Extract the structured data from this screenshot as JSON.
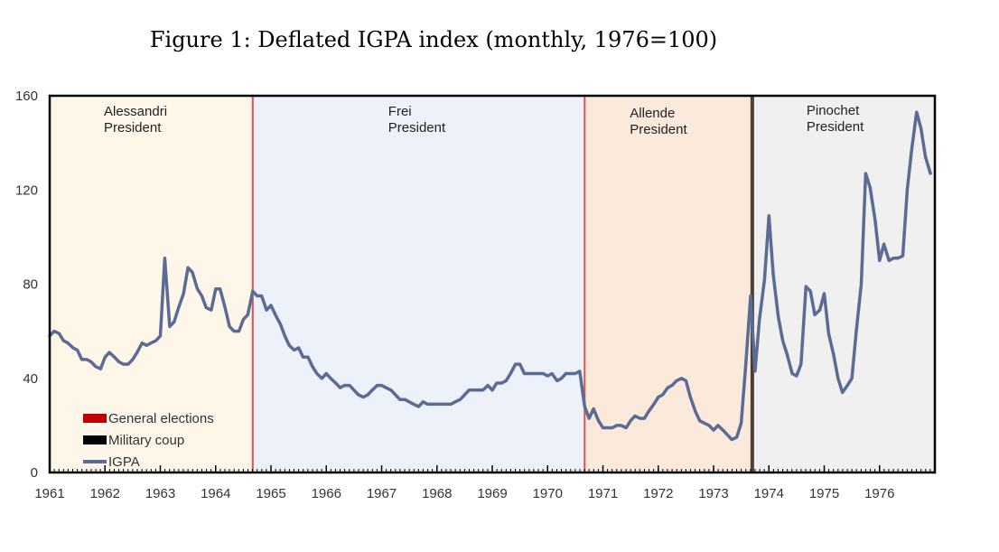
{
  "figure_title": "Figure 1: Deflated IGPA index (monthly, 1976=100)",
  "colors": {
    "igpa_line": "#5b6b94",
    "election_marker": "#c00000",
    "coup_marker": "#000000",
    "alessandri_bg": "#fef7e9",
    "frei_bg": "#edf1fa",
    "allende_bg": "#fbe9dc",
    "pinochet_bg": "#f0f0f0"
  },
  "chart_data": {
    "type": "line",
    "title": "Figure 1: Deflated IGPA index (monthly, 1976=100)",
    "xlabel": "",
    "ylabel": "",
    "xlim": [
      1961.0,
      1977.0
    ],
    "ylim": [
      0,
      160
    ],
    "yticks": [
      0,
      40,
      80,
      120,
      160
    ],
    "xticks": [
      1961,
      1962,
      1963,
      1964,
      1965,
      1966,
      1967,
      1968,
      1969,
      1970,
      1971,
      1972,
      1973,
      1974,
      1975,
      1976
    ],
    "grid": false,
    "legend_position": "bottom-left",
    "periods": [
      {
        "label1": "Alessandri",
        "label2": "President",
        "start": 1961.0,
        "end": 1964.67,
        "color": "#fef7e9"
      },
      {
        "label1": "Frei",
        "label2": "President",
        "start": 1964.67,
        "end": 1970.67,
        "color": "#edf1fa"
      },
      {
        "label1": "Allende",
        "label2": "President",
        "start": 1970.67,
        "end": 1973.7,
        "color": "#fbe9dc"
      },
      {
        "label1": "Pinochet",
        "label2": "President",
        "start": 1973.7,
        "end": 1977.0,
        "color": "#f0f0f0"
      }
    ],
    "events": [
      {
        "type": "General elections",
        "x": 1964.67
      },
      {
        "type": "General elections",
        "x": 1970.67
      },
      {
        "type": "Military coup",
        "x": 1973.7
      }
    ],
    "legend": [
      "General elections",
      "Military coup",
      "IGPA"
    ],
    "series": [
      {
        "name": "IGPA",
        "x": [
          1961.0,
          1961.08,
          1961.17,
          1961.25,
          1961.33,
          1961.42,
          1961.5,
          1961.58,
          1961.67,
          1961.75,
          1961.83,
          1961.92,
          1962.0,
          1962.08,
          1962.17,
          1962.25,
          1962.33,
          1962.42,
          1962.5,
          1962.58,
          1962.67,
          1962.75,
          1962.83,
          1962.92,
          1963.0,
          1963.08,
          1963.17,
          1963.25,
          1963.33,
          1963.42,
          1963.5,
          1963.58,
          1963.67,
          1963.75,
          1963.83,
          1963.92,
          1964.0,
          1964.08,
          1964.17,
          1964.25,
          1964.33,
          1964.42,
          1964.5,
          1964.58,
          1964.67,
          1964.75,
          1964.83,
          1964.92,
          1965.0,
          1965.08,
          1965.17,
          1965.25,
          1965.33,
          1965.42,
          1965.5,
          1965.58,
          1965.67,
          1965.75,
          1965.83,
          1965.92,
          1966.0,
          1966.08,
          1966.17,
          1966.25,
          1966.33,
          1966.42,
          1966.5,
          1966.58,
          1966.67,
          1966.75,
          1966.83,
          1966.92,
          1967.0,
          1967.08,
          1967.17,
          1967.25,
          1967.33,
          1967.42,
          1967.5,
          1967.58,
          1967.67,
          1967.75,
          1967.83,
          1967.92,
          1968.0,
          1968.08,
          1968.17,
          1968.25,
          1968.33,
          1968.42,
          1968.5,
          1968.58,
          1968.67,
          1968.75,
          1968.83,
          1968.92,
          1969.0,
          1969.08,
          1969.17,
          1969.25,
          1969.33,
          1969.42,
          1969.5,
          1969.58,
          1969.67,
          1969.75,
          1969.83,
          1969.92,
          1970.0,
          1970.08,
          1970.17,
          1970.25,
          1970.33,
          1970.42,
          1970.5,
          1970.58,
          1970.67,
          1970.75,
          1970.83,
          1970.92,
          1971.0,
          1971.08,
          1971.17,
          1971.25,
          1971.33,
          1971.42,
          1971.5,
          1971.58,
          1971.67,
          1971.75,
          1971.83,
          1971.92,
          1972.0,
          1972.08,
          1972.17,
          1972.25,
          1972.33,
          1972.42,
          1972.5,
          1972.58,
          1972.67,
          1972.75,
          1972.83,
          1972.92,
          1973.0,
          1973.08,
          1973.17,
          1973.25,
          1973.33,
          1973.42,
          1973.5,
          1973.58,
          1973.67,
          1973.75,
          1973.83,
          1973.92,
          1974.0,
          1974.08,
          1974.17,
          1974.25,
          1974.33,
          1974.42,
          1974.5,
          1974.58,
          1974.67,
          1974.75,
          1974.83,
          1974.92,
          1975.0,
          1975.08,
          1975.17,
          1975.25,
          1975.33,
          1975.42,
          1975.5,
          1975.58,
          1975.67,
          1975.75,
          1975.83,
          1975.92,
          1976.0,
          1976.08,
          1976.17,
          1976.25,
          1976.33,
          1976.42,
          1976.5,
          1976.58,
          1976.67,
          1976.75,
          1976.83,
          1976.92
        ],
        "values": [
          58,
          60,
          59,
          56,
          55,
          53,
          52,
          48,
          48,
          47,
          45,
          44,
          49,
          51,
          49,
          47,
          46,
          46,
          48,
          51,
          55,
          54,
          55,
          56,
          58,
          91,
          62,
          64,
          70,
          76,
          87,
          85,
          78,
          75,
          70,
          69,
          78,
          78,
          70,
          62,
          60,
          60,
          65,
          67,
          77,
          75,
          75,
          69,
          71,
          67,
          63,
          58,
          54,
          52,
          53,
          49,
          49,
          45,
          42,
          40,
          42,
          40,
          38,
          36,
          37,
          37,
          35,
          33,
          32,
          33,
          35,
          37,
          37,
          36,
          35,
          33,
          31,
          31,
          30,
          29,
          28,
          30,
          29,
          29,
          29,
          29,
          29,
          29,
          30,
          31,
          33,
          35,
          35,
          35,
          35,
          37,
          35,
          38,
          38,
          39,
          42,
          46,
          46,
          42,
          42,
          42,
          42,
          42,
          41,
          42,
          39,
          40,
          42,
          42,
          42,
          43,
          28,
          23,
          27,
          22,
          19,
          19,
          19,
          20,
          20,
          19,
          22,
          24,
          23,
          23,
          26,
          29,
          32,
          33,
          36,
          37,
          39,
          40,
          39,
          32,
          26,
          22,
          21,
          20,
          18,
          20,
          18,
          16,
          14,
          15,
          21,
          45,
          75,
          43,
          65,
          82,
          109,
          84,
          66,
          56,
          50,
          42,
          41,
          46,
          79,
          77,
          67,
          69,
          76,
          59,
          50,
          40,
          34,
          37,
          40,
          60,
          80,
          127,
          121,
          107,
          90,
          97,
          90,
          91,
          91,
          92,
          120,
          137,
          153,
          146,
          134,
          127
        ]
      }
    ]
  }
}
